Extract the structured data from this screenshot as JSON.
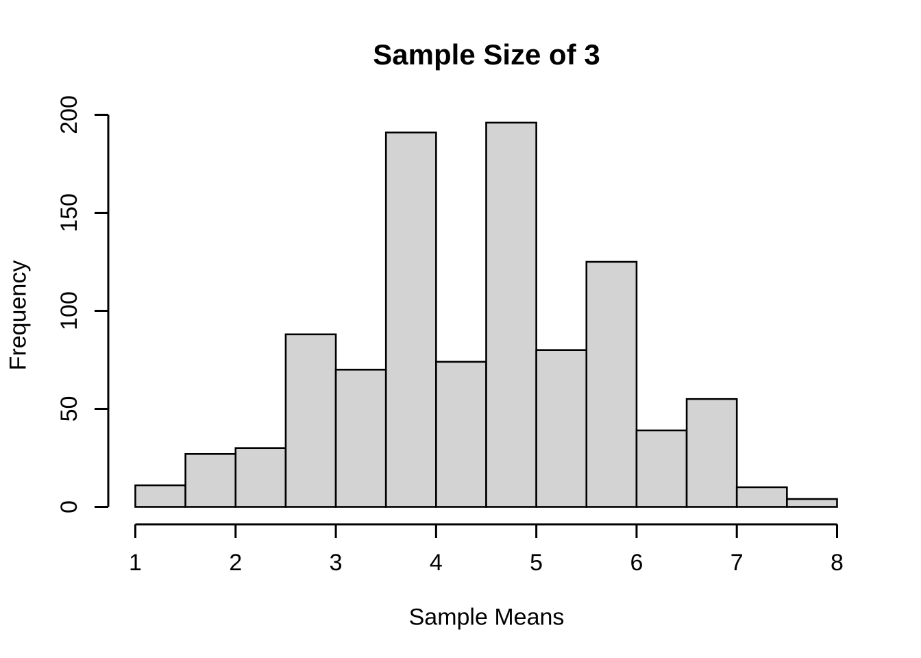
{
  "chart_data": {
    "type": "bar",
    "subtype": "histogram",
    "title": "Sample Size of 3",
    "xlabel": "Sample Means",
    "ylabel": "Frequency",
    "bin_edges": [
      1,
      1.5,
      2,
      2.5,
      3,
      3.5,
      4,
      4.5,
      5,
      5.5,
      6,
      6.5,
      7,
      7.5,
      8
    ],
    "categories": [
      "1-1.5",
      "1.5-2",
      "2-2.5",
      "2.5-3",
      "3-3.5",
      "3.5-4",
      "4-4.5",
      "4.5-5",
      "5-5.5",
      "5.5-6",
      "6-6.5",
      "6.5-7",
      "7-7.5",
      "7.5-8"
    ],
    "values": [
      11,
      27,
      30,
      88,
      70,
      191,
      74,
      196,
      80,
      125,
      39,
      55,
      10,
      4
    ],
    "x_ticks": [
      1,
      2,
      3,
      4,
      5,
      6,
      7,
      8
    ],
    "y_ticks": [
      0,
      50,
      100,
      150,
      200
    ],
    "xlim": [
      1,
      8
    ],
    "ylim": [
      0,
      200
    ],
    "grid": false,
    "legend_position": "none",
    "bar_fill": "#d3d3d3",
    "bar_border": "#000000",
    "axis_color": "#000000",
    "background": "#ffffff"
  }
}
